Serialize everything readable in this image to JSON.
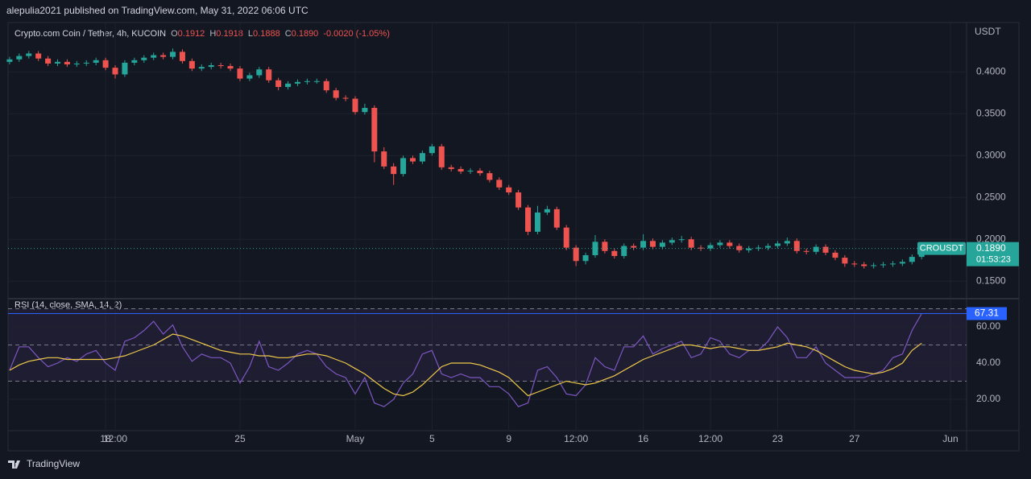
{
  "header": {
    "title": "alepulia2021 published on TradingView.com, May 31, 2022 06:06 UTC"
  },
  "footer": {
    "brand": "TradingView"
  },
  "chart_data": [
    {
      "type": "candlestick",
      "symbol": "Crypto.com Coin / Tether, 4h, KUCOIN",
      "ohlc_legend": [
        {
          "label": "O",
          "value": "0.1912"
        },
        {
          "label": "H",
          "value": "0.1918"
        },
        {
          "label": "L",
          "value": "0.1888"
        },
        {
          "label": "C",
          "value": "0.1890"
        }
      ],
      "change": "-0.0020 (-1.05%)",
      "y_axis_label": "USDT",
      "price_tag": {
        "symbol": "CROUSDT",
        "price": "0.1890",
        "countdown": "01:53:23"
      },
      "up_color": "#26a69a",
      "down_color": "#ef5350",
      "grid": true,
      "xlim": [
        12.92,
        62.84
      ],
      "xticks": [
        18,
        {
          "value": 18.5,
          "label": "12:00"
        },
        25,
        {
          "value": 31,
          "label": "May"
        },
        {
          "value": 35,
          "label": "5"
        },
        {
          "value": 39,
          "label": "9"
        },
        {
          "value": 42.5,
          "label": "12:00"
        },
        {
          "value": 46,
          "label": "16"
        },
        {
          "value": 49.5,
          "label": "12:00"
        },
        {
          "value": 53,
          "label": "23"
        },
        {
          "value": 57,
          "label": "27"
        },
        {
          "value": 62,
          "label": "Jun"
        }
      ],
      "ylim": [
        0.13,
        0.459
      ],
      "yticks": [
        {
          "value": 0.15,
          "label": "0.1500"
        },
        {
          "value": 0.2,
          "label": "0.2000"
        },
        {
          "value": 0.25,
          "label": "0.2500"
        },
        {
          "value": 0.3,
          "label": "0.3000"
        },
        {
          "value": 0.35,
          "label": "0.3500"
        },
        {
          "value": 0.4,
          "label": "0.4000"
        }
      ],
      "x": [
        13,
        13.5,
        14,
        14.5,
        15,
        15.5,
        16,
        16.5,
        17,
        17.5,
        18,
        18.5,
        19,
        19.5,
        20,
        20.5,
        21,
        21.5,
        22,
        22.5,
        23,
        23.5,
        24,
        24.5,
        25,
        25.5,
        26,
        26.5,
        27,
        27.5,
        28,
        28.5,
        29,
        29.5,
        30,
        30.5,
        31,
        31.5,
        32,
        32.5,
        33,
        33.5,
        34,
        34.5,
        35,
        35.5,
        36,
        36.5,
        37,
        37.5,
        38,
        38.5,
        39,
        39.5,
        40,
        40.5,
        41,
        41.5,
        42,
        42.5,
        43,
        43.5,
        44,
        44.5,
        45,
        45.5,
        46,
        46.5,
        47,
        47.5,
        48,
        48.5,
        49,
        49.5,
        50,
        50.5,
        51,
        51.5,
        52,
        52.5,
        53,
        53.5,
        54,
        54.5,
        55,
        55.5,
        56,
        56.5,
        57,
        57.5,
        58,
        58.5,
        59,
        59.5,
        60,
        60.5
      ],
      "open": [
        0.412,
        0.415,
        0.419,
        0.422,
        0.416,
        0.41,
        0.412,
        0.409,
        0.41,
        0.411,
        0.414,
        0.405,
        0.397,
        0.411,
        0.414,
        0.417,
        0.42,
        0.418,
        0.424,
        0.413,
        0.404,
        0.406,
        0.408,
        0.407,
        0.404,
        0.392,
        0.396,
        0.403,
        0.39,
        0.382,
        0.386,
        0.388,
        0.389,
        0.389,
        0.378,
        0.369,
        0.368,
        0.352,
        0.357,
        0.305,
        0.287,
        0.278,
        0.297,
        0.293,
        0.303,
        0.311,
        0.286,
        0.284,
        0.281,
        0.282,
        0.279,
        0.271,
        0.262,
        0.256,
        0.238,
        0.209,
        0.232,
        0.236,
        0.214,
        0.19,
        0.174,
        0.181,
        0.197,
        0.186,
        0.18,
        0.192,
        0.19,
        0.198,
        0.191,
        0.196,
        0.199,
        0.2,
        0.19,
        0.189,
        0.193,
        0.196,
        0.192,
        0.187,
        0.189,
        0.19,
        0.192,
        0.195,
        0.198,
        0.186,
        0.185,
        0.191,
        0.184,
        0.178,
        0.171,
        0.17,
        0.168,
        0.169,
        0.17,
        0.171,
        0.173,
        0.179
      ],
      "high": [
        0.418,
        0.422,
        0.425,
        0.425,
        0.419,
        0.415,
        0.415,
        0.413,
        0.414,
        0.417,
        0.417,
        0.408,
        0.414,
        0.417,
        0.42,
        0.423,
        0.423,
        0.428,
        0.427,
        0.416,
        0.409,
        0.411,
        0.411,
        0.41,
        0.407,
        0.399,
        0.406,
        0.406,
        0.393,
        0.389,
        0.391,
        0.392,
        0.392,
        0.392,
        0.381,
        0.372,
        0.371,
        0.362,
        0.36,
        0.31,
        0.291,
        0.3,
        0.3,
        0.306,
        0.314,
        0.314,
        0.289,
        0.287,
        0.285,
        0.285,
        0.282,
        0.274,
        0.265,
        0.259,
        0.241,
        0.24,
        0.24,
        0.239,
        0.217,
        0.193,
        0.184,
        0.205,
        0.2,
        0.189,
        0.195,
        0.195,
        0.206,
        0.201,
        0.199,
        0.202,
        0.204,
        0.203,
        0.193,
        0.196,
        0.199,
        0.199,
        0.195,
        0.192,
        0.193,
        0.195,
        0.198,
        0.202,
        0.201,
        0.189,
        0.194,
        0.194,
        0.187,
        0.181,
        0.174,
        0.173,
        0.172,
        0.173,
        0.174,
        0.176,
        0.182,
        0.192
      ],
      "low": [
        0.409,
        0.412,
        0.416,
        0.413,
        0.407,
        0.407,
        0.406,
        0.406,
        0.407,
        0.408,
        0.402,
        0.392,
        0.394,
        0.408,
        0.411,
        0.414,
        0.415,
        0.415,
        0.41,
        0.401,
        0.401,
        0.403,
        0.404,
        0.401,
        0.389,
        0.389,
        0.393,
        0.387,
        0.378,
        0.379,
        0.383,
        0.385,
        0.386,
        0.375,
        0.366,
        0.365,
        0.349,
        0.349,
        0.292,
        0.284,
        0.265,
        0.275,
        0.29,
        0.29,
        0.3,
        0.283,
        0.281,
        0.278,
        0.278,
        0.276,
        0.268,
        0.259,
        0.253,
        0.235,
        0.205,
        0.206,
        0.229,
        0.211,
        0.187,
        0.168,
        0.17,
        0.178,
        0.183,
        0.177,
        0.177,
        0.187,
        0.187,
        0.188,
        0.188,
        0.193,
        0.196,
        0.187,
        0.186,
        0.186,
        0.19,
        0.189,
        0.184,
        0.184,
        0.186,
        0.187,
        0.189,
        0.192,
        0.183,
        0.182,
        0.182,
        0.181,
        0.175,
        0.167,
        0.167,
        0.165,
        0.165,
        0.166,
        0.167,
        0.168,
        0.17,
        0.176
      ],
      "close": [
        0.415,
        0.419,
        0.422,
        0.416,
        0.41,
        0.412,
        0.409,
        0.41,
        0.411,
        0.414,
        0.405,
        0.397,
        0.411,
        0.414,
        0.417,
        0.42,
        0.418,
        0.424,
        0.413,
        0.404,
        0.406,
        0.408,
        0.407,
        0.404,
        0.392,
        0.396,
        0.403,
        0.39,
        0.382,
        0.386,
        0.388,
        0.389,
        0.389,
        0.378,
        0.369,
        0.368,
        0.352,
        0.357,
        0.305,
        0.287,
        0.278,
        0.297,
        0.293,
        0.303,
        0.311,
        0.286,
        0.284,
        0.281,
        0.282,
        0.279,
        0.271,
        0.262,
        0.256,
        0.238,
        0.209,
        0.232,
        0.236,
        0.214,
        0.19,
        0.174,
        0.181,
        0.197,
        0.186,
        0.18,
        0.192,
        0.19,
        0.198,
        0.191,
        0.196,
        0.199,
        0.2,
        0.19,
        0.189,
        0.193,
        0.196,
        0.192,
        0.187,
        0.189,
        0.19,
        0.192,
        0.195,
        0.198,
        0.186,
        0.185,
        0.191,
        0.184,
        0.178,
        0.171,
        0.17,
        0.168,
        0.169,
        0.17,
        0.171,
        0.173,
        0.179,
        0.189
      ]
    },
    {
      "type": "line",
      "title": "RSI (14, close, SMA, 14, 2)",
      "value_tag": "67.31",
      "grid": true,
      "levels": [
        30,
        50,
        70
      ],
      "band": [
        30,
        70
      ],
      "band_color": "#7e57c2",
      "xlim": [
        12.92,
        62.84
      ],
      "ylim": [
        2.7,
        75.1
      ],
      "yticks": [
        {
          "value": 20,
          "label": "20.00"
        },
        {
          "value": 40,
          "label": "40.00"
        },
        {
          "value": 60,
          "label": "60.00"
        }
      ],
      "x": [
        13,
        13.5,
        14,
        14.5,
        15,
        15.5,
        16,
        16.5,
        17,
        17.5,
        18,
        18.5,
        19,
        19.5,
        20,
        20.5,
        21,
        21.5,
        22,
        22.5,
        23,
        23.5,
        24,
        24.5,
        25,
        25.5,
        26,
        26.5,
        27,
        27.5,
        28,
        28.5,
        29,
        29.5,
        30,
        30.5,
        31,
        31.5,
        32,
        32.5,
        33,
        33.5,
        34,
        34.5,
        35,
        35.5,
        36,
        36.5,
        37,
        37.5,
        38,
        38.5,
        39,
        39.5,
        40,
        40.5,
        41,
        41.5,
        42,
        42.5,
        43,
        43.5,
        44,
        44.5,
        45,
        45.5,
        46,
        46.5,
        47,
        47.5,
        48,
        48.5,
        49,
        49.5,
        50,
        50.5,
        51,
        51.5,
        52,
        52.5,
        53,
        53.5,
        54,
        54.5,
        55,
        55.5,
        56,
        56.5,
        57,
        57.5,
        58,
        58.5,
        59,
        59.5,
        60,
        60.5
      ],
      "series": [
        {
          "color": "#7e57c2",
          "values": [
            36,
            49,
            49,
            43,
            38,
            40,
            43,
            41,
            45,
            47,
            40,
            36,
            52,
            54,
            58,
            63,
            56,
            61,
            49,
            41,
            45,
            43,
            43,
            40,
            29,
            38,
            52,
            38,
            36,
            40,
            45,
            47,
            45,
            38,
            34,
            32,
            23,
            32,
            18,
            16,
            20,
            29,
            34,
            45,
            47,
            34,
            32,
            34,
            32,
            32,
            27,
            27,
            23,
            16,
            18,
            36,
            38,
            32,
            23,
            22,
            28,
            43,
            38,
            36,
            49,
            49,
            55,
            45,
            48,
            50,
            52,
            43,
            45,
            54,
            52,
            45,
            43,
            47,
            47,
            52,
            60,
            54,
            43,
            43,
            49,
            40,
            36,
            32,
            32,
            32,
            34,
            36,
            43,
            45,
            58,
            67.31
          ]
        },
        {
          "color": "#f0c94a",
          "values": [
            36,
            39,
            41,
            42,
            43,
            43,
            42,
            42,
            42,
            42,
            42,
            43,
            44,
            46,
            48,
            50,
            53,
            56,
            55,
            53,
            51,
            49,
            47,
            46,
            45,
            45,
            44,
            44,
            43,
            43,
            44,
            45,
            45,
            44,
            42,
            40,
            37,
            34,
            30,
            26,
            23,
            22,
            24,
            28,
            33,
            38,
            40,
            40,
            40,
            39,
            37,
            35,
            32,
            27,
            22,
            24,
            26,
            28,
            30,
            29,
            28,
            29,
            31,
            33,
            36,
            39,
            42,
            44,
            46,
            48,
            50,
            50,
            49,
            48,
            49,
            49,
            48,
            47,
            47,
            48,
            49,
            51,
            50,
            49,
            47,
            44,
            41,
            38,
            36,
            35,
            34,
            35,
            37,
            40,
            47,
            51
          ]
        }
      ]
    }
  ]
}
